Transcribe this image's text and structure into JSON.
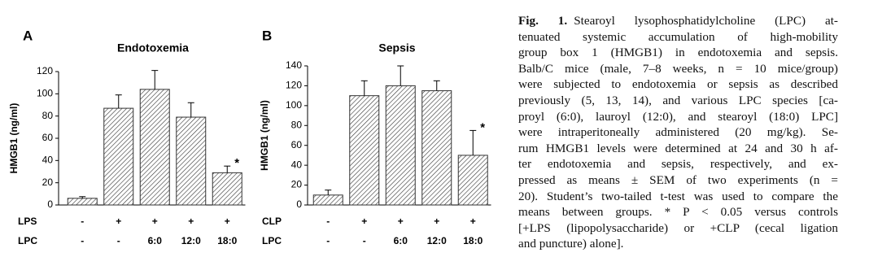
{
  "chart_data": [
    {
      "type": "bar",
      "panel": "A",
      "title": "Endotoxemia",
      "y_label": "HMGB1 (ng/ml)",
      "category_name": "LPC",
      "categories": [
        "-",
        "-",
        "6:0",
        "12:0",
        "18:0"
      ],
      "condition_row": {
        "name": "LPS",
        "labels": [
          "-",
          "+",
          "+",
          "+",
          "+"
        ]
      },
      "values": [
        6,
        87,
        104,
        79,
        29
      ],
      "errors": [
        1.5,
        12,
        17,
        13,
        6
      ],
      "annotation": {
        "text": "*",
        "category_index": 4
      },
      "color": "#333333",
      "hatch": true,
      "ylim": [
        0,
        120
      ],
      "yticks": [
        0,
        20,
        40,
        60,
        80,
        100,
        120
      ],
      "grid": false
    },
    {
      "type": "bar",
      "panel": "B",
      "title": "Sepsis",
      "y_label": "HMGB1 (ng/ml)",
      "category_name": "LPC",
      "categories": [
        "-",
        "-",
        "6:0",
        "12:0",
        "18:0"
      ],
      "condition_row": {
        "name": "CLP",
        "labels": [
          "-",
          "+",
          "+",
          "+",
          "+"
        ]
      },
      "values": [
        10,
        110,
        120,
        115,
        50
      ],
      "errors": [
        5,
        15,
        20,
        10,
        25
      ],
      "annotation": {
        "text": "*",
        "category_index": 4
      },
      "color": "#333333",
      "hatch": true,
      "ylim": [
        0,
        140
      ],
      "yticks": [
        0,
        20,
        40,
        60,
        80,
        100,
        120,
        140
      ],
      "grid": false
    }
  ],
  "caption": {
    "label": "Fig. 1.",
    "lines": [
      "Stearoyl lysophosphatidylcholine (LPC) at-",
      "tenuated systemic accumulation of high-mobility",
      "group box 1 (HMGB1) in endotoxemia and sepsis.",
      "Balb/C mice (male, 7–8 weeks, n = 10 mice/group)",
      "were subjected to endotoxemia or sepsis as described",
      "previously (5, 13, 14), and various LPC species [ca-",
      "proyl (6:0), lauroyl (12:0), and stearoyl (18:0) LPC]",
      "were intraperitoneally administered (20 mg/kg). Se-",
      "rum HMGB1 levels were determined at 24 and 30 h af-",
      "ter endotoxemia and sepsis, respectively, and ex-",
      "pressed as means ± SEM of two experiments (n =",
      "20). Student’s two-tailed t-test was used to compare the",
      "means between groups. * P < 0.05 versus controls",
      "[+LPS (lipopolysaccharide) or +CLP (cecal ligation",
      "and puncture) alone]."
    ]
  }
}
